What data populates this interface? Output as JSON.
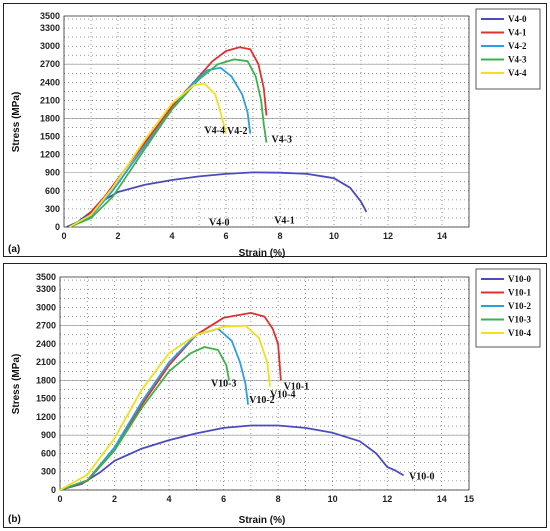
{
  "chart_data": [
    {
      "type": "line",
      "panel_label": "(a)",
      "xlabel": "Strain (%)",
      "ylabel": "Stress (MPa)",
      "xlim": [
        0,
        15
      ],
      "ylim": [
        0,
        3500
      ],
      "xticks": [
        0,
        2,
        4,
        6,
        8,
        10,
        12,
        14
      ],
      "yticks": [
        0,
        300,
        600,
        900,
        1200,
        1500,
        1800,
        2100,
        2400,
        2700,
        3000,
        3300,
        3500
      ],
      "grid": true,
      "legend_position": "right",
      "series": [
        {
          "name": "V4-0",
          "color": "#4b4bbd",
          "end_label": "V4-0",
          "points": [
            [
              0.1,
              0
            ],
            [
              0.5,
              80
            ],
            [
              1.0,
              250
            ],
            [
              1.5,
              450
            ],
            [
              2.0,
              580
            ],
            [
              3.0,
              700
            ],
            [
              4.0,
              780
            ],
            [
              5.0,
              840
            ],
            [
              6.0,
              880
            ],
            [
              7.0,
              905
            ],
            [
              8.0,
              900
            ],
            [
              9.0,
              880
            ],
            [
              10.0,
              810
            ],
            [
              10.6,
              650
            ],
            [
              11.0,
              420
            ],
            [
              11.2,
              250
            ]
          ]
        },
        {
          "name": "V4-1",
          "color": "#e03030",
          "end_label": "V4-1",
          "points": [
            [
              0.2,
              0
            ],
            [
              0.8,
              150
            ],
            [
              1.5,
              500
            ],
            [
              2.0,
              800
            ],
            [
              3.0,
              1400
            ],
            [
              4.0,
              2000
            ],
            [
              5.0,
              2500
            ],
            [
              5.5,
              2750
            ],
            [
              6.0,
              2920
            ],
            [
              6.5,
              2980
            ],
            [
              6.9,
              2950
            ],
            [
              7.2,
              2700
            ],
            [
              7.4,
              2300
            ],
            [
              7.5,
              1850
            ]
          ]
        },
        {
          "name": "V4-2",
          "color": "#2a9fe0",
          "end_label": "V4-2",
          "points": [
            [
              0.2,
              0
            ],
            [
              1.0,
              180
            ],
            [
              1.8,
              600
            ],
            [
              3.0,
              1350
            ],
            [
              4.0,
              1950
            ],
            [
              4.8,
              2400
            ],
            [
              5.3,
              2600
            ],
            [
              5.8,
              2640
            ],
            [
              6.2,
              2500
            ],
            [
              6.6,
              2200
            ],
            [
              6.8,
              1900
            ],
            [
              6.9,
              1550
            ]
          ]
        },
        {
          "name": "V4-3",
          "color": "#3cb24a",
          "end_label": "V4-3",
          "points": [
            [
              0.2,
              0
            ],
            [
              1.0,
              150
            ],
            [
              1.8,
              500
            ],
            [
              3.0,
              1300
            ],
            [
              4.0,
              1950
            ],
            [
              5.0,
              2450
            ],
            [
              5.7,
              2700
            ],
            [
              6.3,
              2780
            ],
            [
              6.8,
              2750
            ],
            [
              7.1,
              2500
            ],
            [
              7.3,
              2100
            ],
            [
              7.4,
              1700
            ],
            [
              7.5,
              1400
            ]
          ]
        },
        {
          "name": "V4-4",
          "color": "#f0e020",
          "end_label": "V4-4",
          "points": [
            [
              0.2,
              0
            ],
            [
              1.0,
              200
            ],
            [
              1.8,
              650
            ],
            [
              3.0,
              1450
            ],
            [
              4.0,
              2050
            ],
            [
              4.8,
              2350
            ],
            [
              5.2,
              2380
            ],
            [
              5.6,
              2200
            ],
            [
              5.8,
              1900
            ],
            [
              6.0,
              1550
            ]
          ]
        }
      ]
    },
    {
      "type": "line",
      "panel_label": "(b)",
      "xlabel": "Strain (%)",
      "ylabel": "Stress (MPa)",
      "xlim": [
        0,
        15
      ],
      "ylim": [
        0,
        3500
      ],
      "xticks": [
        0,
        2,
        4,
        6,
        8,
        10,
        12,
        14,
        15
      ],
      "yticks": [
        0,
        300,
        600,
        900,
        1200,
        1500,
        1800,
        2100,
        2400,
        2700,
        3000,
        3300,
        3500
      ],
      "grid": true,
      "legend_position": "right",
      "series": [
        {
          "name": "V10-0",
          "color": "#4b4bbd",
          "end_label": "V10-0",
          "points": [
            [
              0,
              0
            ],
            [
              0.8,
              100
            ],
            [
              1.5,
              300
            ],
            [
              2.0,
              480
            ],
            [
              3.0,
              680
            ],
            [
              4.0,
              820
            ],
            [
              5.0,
              930
            ],
            [
              6.0,
              1020
            ],
            [
              7.0,
              1060
            ],
            [
              8.0,
              1060
            ],
            [
              9.0,
              1020
            ],
            [
              10.0,
              940
            ],
            [
              11.0,
              800
            ],
            [
              11.6,
              600
            ],
            [
              12.0,
              380
            ],
            [
              12.3,
              320
            ],
            [
              12.6,
              240
            ]
          ]
        },
        {
          "name": "V10-1",
          "color": "#e03030",
          "end_label": "V10-1",
          "points": [
            [
              0,
              0
            ],
            [
              1.0,
              150
            ],
            [
              2.0,
              650
            ],
            [
              3.0,
              1400
            ],
            [
              4.0,
              2050
            ],
            [
              5.0,
              2550
            ],
            [
              6.0,
              2830
            ],
            [
              7.0,
              2910
            ],
            [
              7.5,
              2850
            ],
            [
              7.8,
              2650
            ],
            [
              8.0,
              2400
            ],
            [
              8.1,
              1800
            ]
          ]
        },
        {
          "name": "V10-2",
          "color": "#2a9fe0",
          "end_label": "V10-2",
          "points": [
            [
              0,
              0
            ],
            [
              1.0,
              160
            ],
            [
              2.0,
              700
            ],
            [
              3.0,
              1450
            ],
            [
              4.0,
              2100
            ],
            [
              5.0,
              2550
            ],
            [
              5.8,
              2650
            ],
            [
              6.3,
              2450
            ],
            [
              6.6,
              2100
            ],
            [
              6.8,
              1750
            ],
            [
              6.9,
              1400
            ]
          ]
        },
        {
          "name": "V10-3",
          "color": "#3cb24a",
          "end_label": "V10-3",
          "points": [
            [
              0,
              0
            ],
            [
              1.0,
              160
            ],
            [
              2.0,
              650
            ],
            [
              3.0,
              1350
            ],
            [
              4.0,
              1950
            ],
            [
              4.8,
              2250
            ],
            [
              5.3,
              2350
            ],
            [
              5.8,
              2300
            ],
            [
              6.1,
              2050
            ],
            [
              6.2,
              1800
            ]
          ]
        },
        {
          "name": "V10-4",
          "color": "#f0e020",
          "end_label": "V10-4",
          "points": [
            [
              0,
              0
            ],
            [
              1.0,
              250
            ],
            [
              2.0,
              850
            ],
            [
              3.0,
              1650
            ],
            [
              4.0,
              2250
            ],
            [
              5.0,
              2550
            ],
            [
              6.0,
              2680
            ],
            [
              6.8,
              2700
            ],
            [
              7.3,
              2500
            ],
            [
              7.6,
              2100
            ],
            [
              7.7,
              1700
            ]
          ]
        }
      ]
    }
  ]
}
